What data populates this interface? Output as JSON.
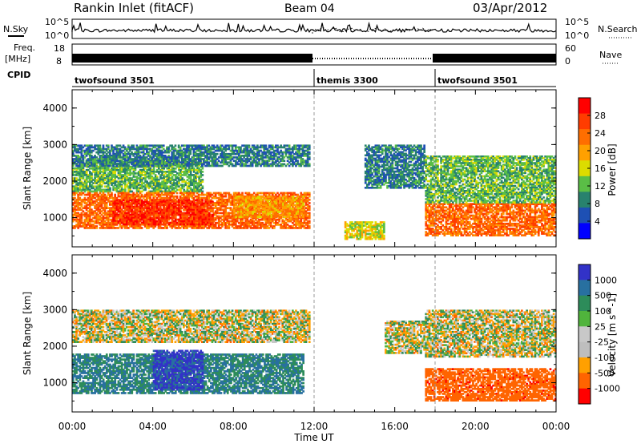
{
  "header": {
    "station": "Rankin Inlet (fitACF)",
    "beam": "Beam 04",
    "date": "03/Apr/2012"
  },
  "noise_panel": {
    "left_label": "N.Sky",
    "right_label": "N.Search",
    "left_ticks": [
      "10^5",
      "10^0"
    ],
    "right_ticks": [
      "10^5",
      "10^0"
    ]
  },
  "freq_panel": {
    "left_label_1": "Freq.",
    "left_label_2": "[MHz]",
    "right_label": "Nave",
    "left_ticks": [
      "18",
      "8"
    ],
    "right_ticks": [
      "60",
      "0"
    ],
    "cpid_label": "CPID"
  },
  "cpid_segments": [
    {
      "name": "twofsound 3501",
      "start": 0,
      "end": 12
    },
    {
      "name": "themis 3300",
      "start": 12,
      "end": 18
    },
    {
      "name": "twofsound 3501",
      "start": 18,
      "end": 24
    }
  ],
  "colors": {
    "power": [
      "#0000ff",
      "#1e50b4",
      "#28826e",
      "#5abe46",
      "#dcdc00",
      "#ffa000",
      "#ff6e00",
      "#ff3c00",
      "#ff0000"
    ],
    "velocity": [
      "#3232c8",
      "#2870a0",
      "#2d8c5a",
      "#50b43c",
      "#c8c8c8",
      "#bebebe",
      "#ffa000",
      "#ff6400",
      "#ff0000"
    ]
  },
  "chart_data": [
    {
      "type": "heatmap",
      "title": "Power",
      "ylabel": "Slant Range [km]",
      "y_ticks": [
        "1000",
        "2000",
        "3000",
        "4000"
      ],
      "ylim": [
        200,
        4500
      ],
      "xlim": [
        0,
        24
      ],
      "colorbar": {
        "label": "Power [dB]",
        "ticks": [
          "4",
          "8",
          "12",
          "16",
          "20",
          "24",
          "28"
        ],
        "range": [
          0,
          32
        ]
      },
      "regions": [
        {
          "t0": 0.0,
          "t1": 6.5,
          "r0": 1700,
          "r1": 2600,
          "value": 12
        },
        {
          "t0": 0.0,
          "t1": 11.8,
          "r0": 2400,
          "r1": 3000,
          "value": 8
        },
        {
          "t0": 0.0,
          "t1": 11.8,
          "r0": 700,
          "r1": 1700,
          "value": 24
        },
        {
          "t0": 2.0,
          "t1": 7.0,
          "r0": 800,
          "r1": 1500,
          "value": 28
        },
        {
          "t0": 8.0,
          "t1": 11.5,
          "r0": 1000,
          "r1": 1600,
          "value": 20
        },
        {
          "t0": 14.5,
          "t1": 17.5,
          "r0": 1800,
          "r1": 3000,
          "value": 8
        },
        {
          "t0": 17.5,
          "t1": 24.0,
          "r0": 500,
          "r1": 1400,
          "value": 24
        },
        {
          "t0": 17.5,
          "t1": 24.0,
          "r0": 1400,
          "r1": 2700,
          "value": 12
        },
        {
          "t0": 13.5,
          "t1": 15.5,
          "r0": 400,
          "r1": 900,
          "value": 16
        }
      ]
    },
    {
      "type": "heatmap",
      "title": "Velocity",
      "ylabel": "Slant Range [km]",
      "y_ticks": [
        "1000",
        "2000",
        "3000",
        "4000"
      ],
      "ylim": [
        200,
        4500
      ],
      "xlim": [
        0,
        24
      ],
      "colorbar": {
        "label": "Velocity [m s^-1]",
        "ticks": [
          "1000",
          "500",
          "100",
          "25",
          "-25",
          "-100",
          "-500",
          "-1000"
        ]
      },
      "regions": [
        {
          "t0": 0.0,
          "t1": 11.8,
          "r0": 2100,
          "r1": 3000,
          "value": 0
        },
        {
          "t0": 0.0,
          "t1": 11.5,
          "r0": 700,
          "r1": 1800,
          "value": 300
        },
        {
          "t0": 4.0,
          "t1": 6.5,
          "r0": 800,
          "r1": 1900,
          "value": 800
        },
        {
          "t0": 15.5,
          "t1": 17.5,
          "r0": 1800,
          "r1": 2700,
          "value": 0
        },
        {
          "t0": 17.5,
          "t1": 24.0,
          "r0": 1700,
          "r1": 3000,
          "value": 0
        },
        {
          "t0": 17.5,
          "t1": 24.0,
          "r0": 500,
          "r1": 1400,
          "value": -400
        }
      ]
    }
  ],
  "x_axis": {
    "label": "Time UT",
    "ticks": [
      "00:00",
      "04:00",
      "08:00",
      "12:00",
      "16:00",
      "20:00",
      "00:00"
    ]
  }
}
